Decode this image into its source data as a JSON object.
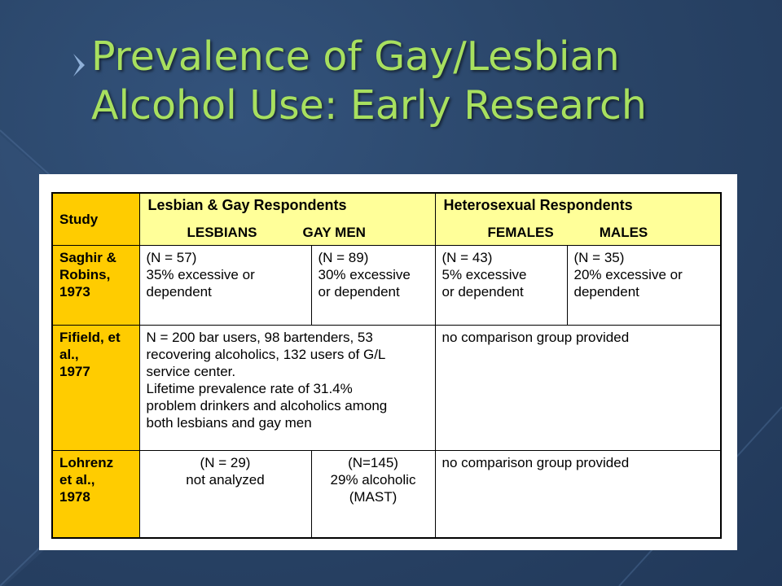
{
  "slide": {
    "title_line1": "Prevalence of Gay/Lesbian",
    "title_line2": "Alcohol Use:  Early Research",
    "title_color": "#a8e05f",
    "accent_header": "#ffff99",
    "accent_study": "#ffcc00"
  },
  "table": {
    "study_header": "Study",
    "group_lg": "Lesbian  & Gay Respondents",
    "group_het": "Heterosexual Respondents",
    "col_lesbians": "LESBIANS",
    "col_gaymen": "GAY MEN",
    "col_females": "FEMALES",
    "col_males": "MALES",
    "rows": [
      {
        "study": [
          "Saghir &",
          "Robins,",
          "1973"
        ],
        "lesbians": [
          "(N = 57)",
          "35% excessive or",
          "dependent"
        ],
        "gaymen": [
          "(N = 89)",
          "30% excessive",
          "or dependent"
        ],
        "females": [
          "(N = 43)",
          "5% excessive",
          "or dependent"
        ],
        "males": [
          "(N = 35)",
          "20% excessive or",
          "dependent"
        ]
      },
      {
        "study": [
          "Fifield, et",
          "al.,",
          "1977"
        ],
        "lg": [
          "N = 200 bar users, 98 bartenders, 53",
          "recovering alcoholics, 132 users of G/L",
          "service center.",
          "Lifetime prevalence rate of 31.4%",
          "problem drinkers and alcoholics among",
          "both lesbians and gay men"
        ],
        "het": "no comparison group provided"
      },
      {
        "study": [
          "Lohrenz",
          "et al.,",
          "1978"
        ],
        "lesbians": [
          "(N = 29)",
          "not analyzed"
        ],
        "gaymen": [
          "(N=145)",
          "29% alcoholic",
          "(MAST)"
        ],
        "het": "no comparison group provided"
      }
    ]
  }
}
